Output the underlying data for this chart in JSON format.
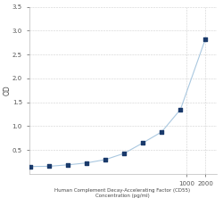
{
  "x": [
    6.25,
    12.5,
    25,
    50,
    100,
    200,
    400,
    800,
    2000
  ],
  "y": [
    0.16,
    0.19,
    0.23,
    0.3,
    0.43,
    0.65,
    0.88,
    1.35,
    2.82
  ],
  "x_full": [
    3.125,
    6.25,
    12.5,
    25,
    50,
    100,
    200,
    400,
    800,
    2000
  ],
  "y_full": [
    0.155,
    0.16,
    0.19,
    0.23,
    0.3,
    0.43,
    0.65,
    0.88,
    1.35,
    2.82
  ],
  "xlabel_line1": "Human Complement Decay-Accelerating Factor (CD55)",
  "xlabel_line2": "Concentration (pg/ml)",
  "ylabel": "OD",
  "xlim_log": [
    3.0,
    3000
  ],
  "ylim": [
    0,
    3.5
  ],
  "yticks": [
    0.5,
    1.0,
    1.5,
    2.0,
    2.5,
    3.0,
    3.5
  ],
  "xticks": [
    1000,
    2000
  ],
  "line_color": "#aac8e0",
  "marker_color": "#1a3a6b",
  "grid_color": "#d0d0d0",
  "bg_color": "#ffffff"
}
